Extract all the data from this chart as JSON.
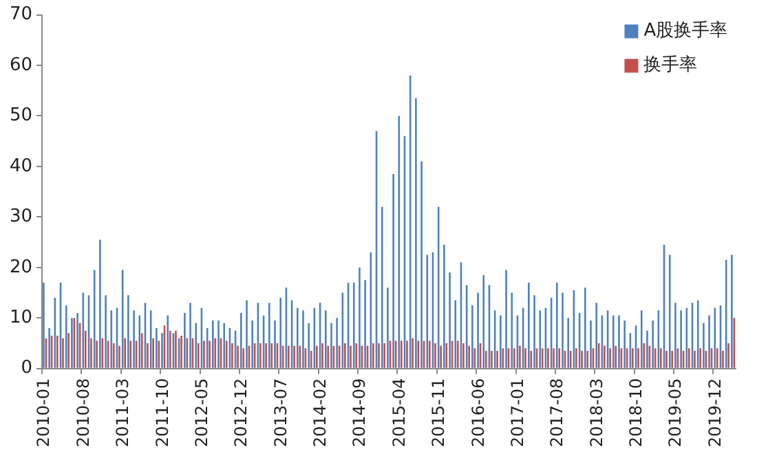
{
  "chart_data": {
    "type": "bar",
    "categories": [
      "2010-01",
      null,
      null,
      null,
      null,
      null,
      null,
      "2010-08",
      null,
      null,
      null,
      null,
      null,
      null,
      "2011-03",
      null,
      null,
      null,
      null,
      null,
      null,
      "2011-10",
      null,
      null,
      null,
      null,
      null,
      null,
      "2012-05",
      null,
      null,
      null,
      null,
      null,
      null,
      "2012-12",
      null,
      null,
      null,
      null,
      null,
      null,
      "2013-07",
      null,
      null,
      null,
      null,
      null,
      null,
      "2014-02",
      null,
      null,
      null,
      null,
      null,
      null,
      "2014-09",
      null,
      null,
      null,
      null,
      null,
      null,
      "2015-04",
      null,
      null,
      null,
      null,
      null,
      null,
      "2015-11",
      null,
      null,
      null,
      null,
      null,
      null,
      "2016-06",
      null,
      null,
      null,
      null,
      null,
      null,
      "2017-01",
      null,
      null,
      null,
      null,
      null,
      null,
      "2017-08",
      null,
      null,
      null,
      null,
      null,
      null,
      "2018-03",
      null,
      null,
      null,
      null,
      null,
      null,
      "2018-10",
      null,
      null,
      null,
      null,
      null,
      null,
      "2019-05",
      null,
      null,
      null,
      null,
      null,
      null,
      "2019-12",
      null,
      null,
      null
    ],
    "series": [
      {
        "name": "A股换手率",
        "color": "#4f81bd",
        "values": [
          17,
          8,
          14,
          17,
          12.5,
          10,
          11,
          15,
          14.5,
          19.5,
          25.5,
          14.5,
          11.5,
          12,
          19.5,
          14.5,
          11.5,
          10.5,
          13,
          11.5,
          8,
          7,
          10.5,
          7,
          6,
          11,
          13,
          9,
          12,
          8,
          9.5,
          9.5,
          9,
          8,
          7.5,
          11,
          13.5,
          9.5,
          13,
          10.5,
          13,
          9.5,
          14,
          16,
          13.5,
          12,
          11.5,
          9,
          12,
          13,
          11.5,
          9,
          10,
          15,
          17,
          17,
          20,
          17.5,
          23,
          47,
          32,
          16,
          38.5,
          50,
          46,
          58,
          53.5,
          41,
          22.5,
          23,
          32,
          24.5,
          19,
          13.5,
          21,
          16.5,
          12.5,
          15,
          18.5,
          16.5,
          11.5,
          10.5,
          19.5,
          15,
          10.5,
          12,
          17,
          14.5,
          11.5,
          12,
          14,
          17,
          15,
          10,
          15.5,
          11,
          16,
          9.5,
          13,
          10.5,
          11.5,
          10.5,
          10.5,
          9.5,
          7,
          8.5,
          11.5,
          7.5,
          9.5,
          11.5,
          24.5,
          22.5,
          13,
          11.5,
          12,
          13,
          13.5,
          9,
          10.5,
          12,
          12.5,
          21.5,
          22.5
        ]
      },
      {
        "name": "换手率",
        "color": "#c0504d",
        "values": [
          6,
          6.5,
          6.5,
          6,
          7,
          10,
          9,
          7.5,
          6,
          5.5,
          6,
          5.5,
          5,
          4.5,
          6,
          5.5,
          5.5,
          7,
          5,
          6,
          5.5,
          8.5,
          7.5,
          7.5,
          6.5,
          6,
          6,
          5,
          5.5,
          5.5,
          6,
          6,
          5.5,
          5,
          4.5,
          4,
          4.5,
          5,
          5,
          5,
          5,
          5,
          4.5,
          4.5,
          4.5,
          4.5,
          4,
          3.5,
          4.5,
          5,
          4.5,
          4.5,
          4.5,
          5,
          4.5,
          5,
          4.5,
          4.5,
          5,
          5,
          5,
          5.5,
          5.5,
          5.5,
          5.5,
          6,
          5.5,
          5.5,
          5.5,
          5,
          4.5,
          5,
          5.5,
          5.5,
          5,
          4.5,
          4,
          5,
          3.5,
          3.5,
          3.5,
          4,
          4,
          4,
          4.5,
          4,
          3.5,
          4,
          4,
          4,
          4,
          4,
          3.5,
          3.5,
          4,
          3.5,
          3.5,
          4,
          5,
          4.5,
          4,
          4.5,
          4,
          4,
          4,
          4,
          5,
          4.5,
          4,
          4,
          3.5,
          3.5,
          4,
          3.5,
          4,
          3.5,
          4,
          3.5,
          4,
          4,
          3.5,
          5,
          10
        ]
      }
    ],
    "ylim": [
      0,
      70
    ],
    "yticks": [
      0,
      10,
      20,
      30,
      40,
      50,
      60,
      70
    ],
    "grid": false,
    "legend": "top right"
  }
}
